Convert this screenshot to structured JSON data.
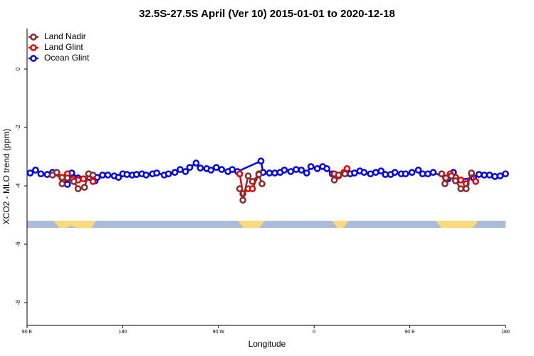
{
  "chart_data": {
    "type": "line",
    "title": "32.5S-27.5S April (Ver 10)   2015-01-01 to 2020-12-18",
    "x_label": "Longitude",
    "y_label": "XCO2 - MLO trend (ppm)",
    "xlim": [
      90,
      540
    ],
    "ylim": [
      1.39,
      -8.78
    ],
    "xticks": [
      {
        "value": 90,
        "label": "90 E"
      },
      180,
      {
        "value": 270,
        "label": "90 W"
      },
      {
        "value": 360,
        "label": "0"
      },
      {
        "value": 450,
        "label": "90 E"
      },
      {
        "value": 540,
        "label": "180"
      }
    ],
    "yticks": [
      0,
      -2,
      -4,
      -6,
      -8
    ],
    "legend": "top-left",
    "series": [
      {
        "name": "Land Nadir",
        "color": "#8b2a2a",
        "x": [
          114,
          118,
          123,
          128,
          134,
          138,
          144,
          148,
          152,
          null,
          290,
          293,
          298,
          302,
          308,
          311,
          null,
          379,
          383,
          389,
          null,
          480,
          483,
          489,
          493,
          498,
          503,
          508
        ],
        "values": [
          -3.63,
          -3.54,
          -3.93,
          -3.73,
          -3.85,
          -4.1,
          -4.05,
          -3.59,
          -3.63,
          null,
          -4.1,
          -4.49,
          -3.66,
          -3.85,
          -3.61,
          -3.93,
          null,
          -3.8,
          -3.63,
          -3.59,
          null,
          -3.59,
          -3.93,
          -3.66,
          -3.83,
          -4.1,
          -4.1,
          -3.56
        ]
      },
      {
        "name": "Land Glint",
        "color": "#ee0000",
        "x": [
          118,
          123,
          128,
          133,
          138,
          143,
          148,
          152,
          null,
          290,
          293,
          298,
          302,
          308,
          null,
          379,
          383,
          388,
          391,
          null,
          480,
          484,
          488,
          493,
          498,
          503,
          508,
          512
        ],
        "values": [
          -3.56,
          -3.71,
          -3.59,
          -3.78,
          -3.8,
          -3.76,
          -3.59,
          -3.85,
          null,
          -3.59,
          -4.27,
          -4.1,
          -4.1,
          -3.59,
          null,
          -3.59,
          -3.66,
          -3.54,
          -3.41,
          null,
          -3.59,
          -3.73,
          -3.59,
          -3.71,
          -3.8,
          -3.93,
          -3.59,
          -3.85
        ]
      },
      {
        "name": "Ocean Glint",
        "color": "#0000ee",
        "x": [
          93,
          98,
          103,
          109,
          114,
          124,
          128,
          132,
          138,
          154,
          156,
          161,
          166,
          172,
          176,
          180,
          184,
          189,
          193,
          198,
          202,
          208,
          212,
          219,
          223,
          229,
          234,
          239,
          243,
          249,
          253,
          259,
          263,
          268,
          273,
          279,
          283,
          288,
          310,
          312,
          318,
          323,
          328,
          332,
          338,
          343,
          348,
          353,
          357,
          363,
          368,
          372,
          377,
          390,
          394,
          398,
          403,
          407,
          413,
          418,
          423,
          427,
          432,
          436,
          442,
          446,
          452,
          458,
          462,
          467,
          472,
          486,
          491,
          495,
          510,
          515,
          520,
          525,
          530,
          535,
          540
        ],
        "values": [
          -3.56,
          -3.46,
          -3.59,
          -3.61,
          -3.54,
          -3.78,
          -3.95,
          -3.56,
          -3.73,
          -3.83,
          -3.71,
          -3.63,
          -3.63,
          -3.66,
          -3.71,
          -3.59,
          -3.61,
          -3.63,
          -3.61,
          -3.59,
          -3.63,
          -3.59,
          -3.56,
          -3.63,
          -3.59,
          -3.54,
          -3.44,
          -3.51,
          -3.37,
          -3.22,
          -3.39,
          -3.41,
          -3.46,
          -3.37,
          -3.44,
          -3.51,
          -3.44,
          -3.51,
          -3.15,
          -3.54,
          -3.56,
          -3.56,
          -3.54,
          -3.46,
          -3.51,
          -3.44,
          -3.46,
          -3.56,
          -3.34,
          -3.41,
          -3.34,
          -3.41,
          -3.59,
          -3.56,
          -3.59,
          -3.56,
          -3.49,
          -3.54,
          -3.59,
          -3.54,
          -3.49,
          -3.61,
          -3.61,
          -3.54,
          -3.59,
          -3.59,
          -3.54,
          -3.46,
          -3.59,
          -3.59,
          -3.54,
          -3.76,
          -3.54,
          -3.8,
          -3.73,
          -3.61,
          -3.63,
          -3.63,
          -3.68,
          -3.66,
          -3.59
        ]
      }
    ]
  }
}
